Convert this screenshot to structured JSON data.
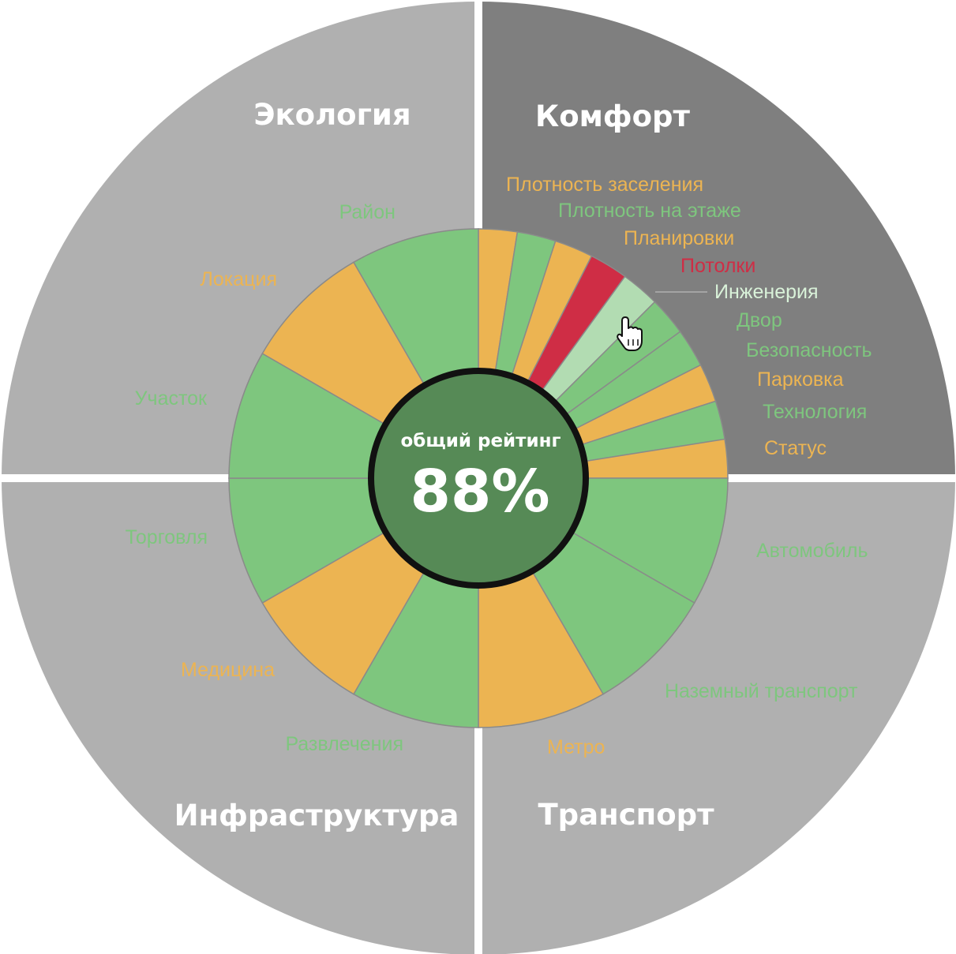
{
  "colors": {
    "green": "#7ec67e",
    "orange": "#ecb452",
    "red": "#cf2d45",
    "light_green": "#b2dcb2",
    "quadrant_light": "#b0b0b0",
    "quadrant_dark": "#7f7f7f",
    "center_fill": "#568a56",
    "center_ring": "#111111",
    "divider": "#ffffff"
  },
  "center": {
    "caption": "общий рейтинг",
    "value": "88%"
  },
  "chart_data": {
    "type": "sunburst",
    "overall_rating": "88%",
    "groups": [
      {
        "key": "komfort",
        "title": "Комфорт",
        "shade": "dark",
        "items": [
          {
            "key": "plotnost-zaseleniya",
            "label": "Плотность заселения",
            "status": "orange"
          },
          {
            "key": "plotnost-na-etazhe",
            "label": "Плотность на этаже",
            "status": "green"
          },
          {
            "key": "planirovki",
            "label": "Планировки",
            "status": "orange"
          },
          {
            "key": "potolki",
            "label": "Потолки",
            "status": "red"
          },
          {
            "key": "inzheneriya",
            "label": "Инженерия",
            "status": "light_green",
            "highlighted": true
          },
          {
            "key": "dvor",
            "label": "Двор",
            "status": "green"
          },
          {
            "key": "bezopasnost",
            "label": "Безопасность",
            "status": "green"
          },
          {
            "key": "parkovka",
            "label": "Парковка",
            "status": "orange"
          },
          {
            "key": "tekhnologiya",
            "label": "Технология",
            "status": "green"
          },
          {
            "key": "status",
            "label": "Статус",
            "status": "orange"
          }
        ]
      },
      {
        "key": "transport",
        "title": "Транспорт",
        "shade": "light",
        "items": [
          {
            "key": "avtomobil",
            "label": "Автомобиль",
            "status": "green"
          },
          {
            "key": "nazemnyy-transport",
            "label": "Наземный транспорт",
            "status": "green"
          },
          {
            "key": "metro",
            "label": "Метро",
            "status": "orange"
          }
        ]
      },
      {
        "key": "infrastruktura",
        "title": "Инфраструктура",
        "shade": "light",
        "items": [
          {
            "key": "razvlecheniya",
            "label": "Развлечения",
            "status": "green"
          },
          {
            "key": "meditsina",
            "label": "Медицина",
            "status": "orange"
          },
          {
            "key": "torgovlya",
            "label": "Торговля",
            "status": "green"
          }
        ]
      },
      {
        "key": "ekologiya",
        "title": "Экология",
        "shade": "light",
        "items": [
          {
            "key": "uchastok",
            "label": "Участок",
            "status": "green"
          },
          {
            "key": "lokatsiya",
            "label": "Локация",
            "status": "orange"
          },
          {
            "key": "rayon",
            "label": "Район",
            "status": "green"
          }
        ]
      }
    ]
  }
}
